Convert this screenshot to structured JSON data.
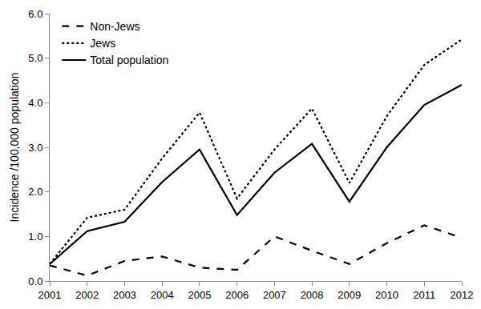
{
  "chart_data": {
    "type": "line",
    "y_label": "Incidence /100,000 population",
    "x": [
      2001,
      2002,
      2003,
      2004,
      2005,
      2006,
      2007,
      2008,
      2009,
      2010,
      2011,
      2012
    ],
    "series": [
      {
        "name": "Non-Jews",
        "color": "#000000",
        "line_style": "dashed",
        "values": [
          0.35,
          0.12,
          0.45,
          0.55,
          0.3,
          0.25,
          1.0,
          0.68,
          0.38,
          0.85,
          1.25,
          0.97
        ]
      },
      {
        "name": "Jews",
        "color": "#000000",
        "line_style": "dotted",
        "values": [
          0.38,
          1.42,
          1.6,
          2.75,
          3.78,
          1.85,
          2.95,
          3.87,
          2.2,
          3.7,
          4.85,
          5.42
        ]
      },
      {
        "name": "Total population",
        "color": "#000000",
        "line_style": "solid",
        "values": [
          0.38,
          1.12,
          1.33,
          2.22,
          2.95,
          1.48,
          2.43,
          3.08,
          1.78,
          3.0,
          3.95,
          4.4
        ]
      }
    ],
    "xlim": [
      2001,
      2012
    ],
    "xticks": [
      2001,
      2002,
      2003,
      2004,
      2005,
      2006,
      2007,
      2008,
      2009,
      2010,
      2011,
      2012
    ],
    "ylim": [
      0,
      6
    ],
    "yticks": [
      {
        "value": 0,
        "label": "0.0"
      },
      {
        "value": 1,
        "label": "1.0"
      },
      {
        "value": 2,
        "label": "2.0"
      },
      {
        "value": 3,
        "label": "3.0"
      },
      {
        "value": 4,
        "label": "4.0"
      },
      {
        "value": 5,
        "label": "5.0"
      },
      {
        "value": 6,
        "label": "6.0"
      }
    ],
    "grid": false,
    "legend": "top-left"
  }
}
